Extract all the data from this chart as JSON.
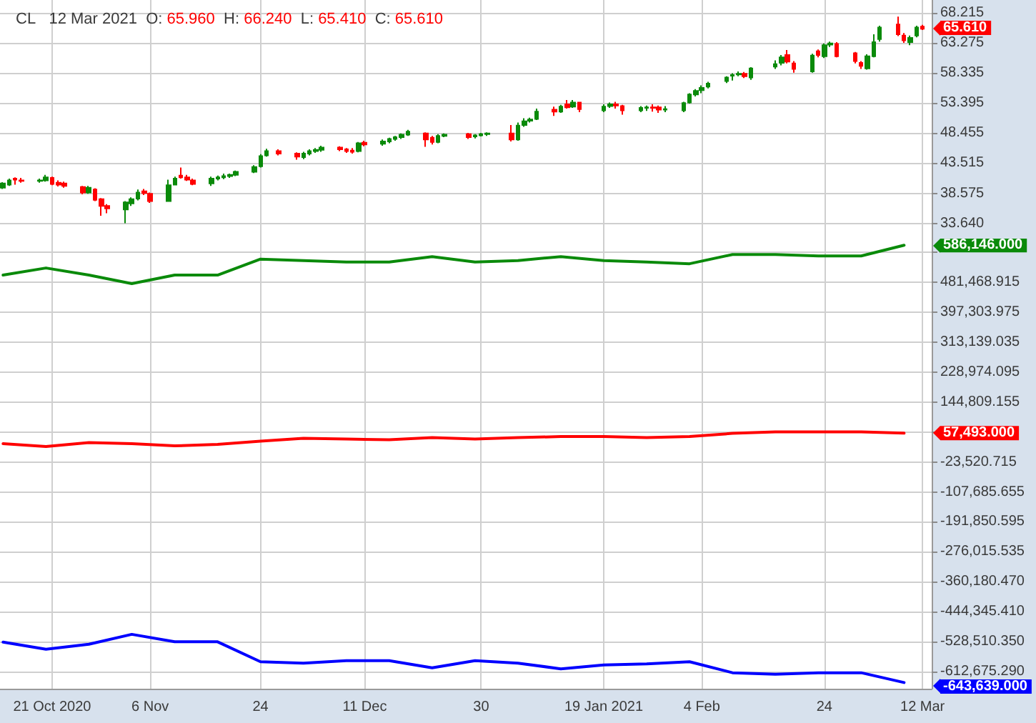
{
  "chart_data": [
    {
      "type": "candlestick",
      "title": "CL   12 Mar 2021  O: 65.960  H: 66.240  L: 65.410  C: 65.610",
      "x": [
        "2020-10-13",
        "2020-10-14",
        "2020-10-15",
        "2020-10-16",
        "2020-10-19",
        "2020-10-20",
        "2020-10-21",
        "2020-10-22",
        "2020-10-23",
        "2020-10-26",
        "2020-10-27",
        "2020-10-28",
        "2020-10-29",
        "2020-10-30",
        "2020-11-02",
        "2020-11-03",
        "2020-11-04",
        "2020-11-05",
        "2020-11-06",
        "2020-11-09",
        "2020-11-10",
        "2020-11-11",
        "2020-11-12",
        "2020-11-13",
        "2020-11-16",
        "2020-11-17",
        "2020-11-18",
        "2020-11-19",
        "2020-11-20",
        "2020-11-23",
        "2020-11-24",
        "2020-11-25",
        "2020-11-27",
        "2020-11-30",
        "2020-12-01",
        "2020-12-02",
        "2020-12-03",
        "2020-12-04",
        "2020-12-07",
        "2020-12-08",
        "2020-12-09",
        "2020-12-10",
        "2020-12-11",
        "2020-12-14",
        "2020-12-15",
        "2020-12-16",
        "2020-12-17",
        "2020-12-18",
        "2020-12-21",
        "2020-12-22",
        "2020-12-23",
        "2020-12-24",
        "2020-12-28",
        "2020-12-29",
        "2020-12-30",
        "2020-12-31",
        "2021-01-04",
        "2021-01-05",
        "2021-01-06",
        "2021-01-07",
        "2021-01-08",
        "2021-01-11",
        "2021-01-12",
        "2021-01-13",
        "2021-01-14",
        "2021-01-15",
        "2021-01-19",
        "2021-01-20",
        "2021-01-21",
        "2021-01-22",
        "2021-01-25",
        "2021-01-26",
        "2021-01-27",
        "2021-01-28",
        "2021-01-29",
        "2021-02-01",
        "2021-02-02",
        "2021-02-03",
        "2021-02-04",
        "2021-02-05",
        "2021-02-08",
        "2021-02-09",
        "2021-02-10",
        "2021-02-11",
        "2021-02-12",
        "2021-02-16",
        "2021-02-17",
        "2021-02-18",
        "2021-02-19",
        "2021-02-22",
        "2021-02-23",
        "2021-02-24",
        "2021-02-25",
        "2021-02-26",
        "2021-03-01",
        "2021-03-02",
        "2021-03-03",
        "2021-03-04",
        "2021-03-05",
        "2021-03-08",
        "2021-03-09",
        "2021-03-10",
        "2021-03-11",
        "2021-03-12"
      ],
      "ohlc": [
        [
          39.5,
          40.4,
          39.3,
          40.2
        ],
        [
          40.0,
          41.0,
          39.8,
          40.7
        ],
        [
          41.0,
          41.2,
          40.0,
          40.8
        ],
        [
          40.7,
          41.1,
          40.3,
          40.6
        ],
        [
          40.6,
          41.0,
          40.3,
          40.7
        ],
        [
          40.7,
          41.6,
          40.5,
          41.2
        ],
        [
          41.1,
          41.3,
          39.9,
          40.1
        ],
        [
          40.3,
          40.7,
          39.7,
          40.0
        ],
        [
          40.2,
          40.5,
          39.5,
          39.8
        ],
        [
          39.6,
          39.8,
          38.4,
          38.7
        ],
        [
          38.7,
          39.8,
          38.5,
          39.5
        ],
        [
          39.2,
          39.4,
          37.3,
          37.5
        ],
        [
          37.6,
          37.8,
          34.9,
          36.5
        ],
        [
          36.5,
          36.8,
          35.3,
          36.1
        ],
        [
          35.9,
          37.3,
          33.64,
          37.1
        ],
        [
          36.9,
          37.9,
          36.5,
          37.6
        ],
        [
          37.7,
          39.2,
          37.4,
          38.7
        ],
        [
          38.9,
          39.3,
          38.3,
          38.6
        ],
        [
          38.5,
          38.7,
          37.0,
          37.3
        ],
        [
          37.3,
          40.8,
          37.2,
          39.9
        ],
        [
          40.0,
          41.3,
          39.9,
          41.0
        ],
        [
          41.5,
          42.8,
          41.0,
          41.2
        ],
        [
          41.2,
          41.6,
          40.6,
          40.8
        ],
        [
          40.7,
          41.0,
          39.9,
          40.1
        ],
        [
          40.2,
          41.3,
          39.8,
          41.0
        ],
        [
          41.0,
          41.5,
          40.7,
          41.2
        ],
        [
          41.2,
          41.8,
          40.9,
          41.4
        ],
        [
          41.4,
          41.8,
          41.1,
          41.6
        ],
        [
          41.6,
          42.3,
          41.4,
          42.1
        ],
        [
          42.1,
          43.2,
          41.9,
          42.9
        ],
        [
          43.0,
          45.0,
          42.8,
          44.7
        ],
        [
          44.8,
          45.9,
          44.6,
          45.5
        ],
        [
          45.5,
          45.8,
          44.8,
          45.1
        ],
        [
          45.1,
          45.3,
          44.1,
          44.6
        ],
        [
          44.5,
          45.4,
          44.2,
          45.1
        ],
        [
          45.1,
          45.8,
          44.8,
          45.5
        ],
        [
          45.5,
          46.0,
          45.2,
          45.7
        ],
        [
          45.7,
          46.4,
          45.4,
          46.1
        ],
        [
          46.1,
          46.3,
          45.5,
          45.8
        ],
        [
          45.8,
          46.0,
          45.2,
          45.5
        ],
        [
          45.6,
          46.0,
          45.1,
          45.4
        ],
        [
          45.5,
          47.0,
          45.3,
          46.8
        ],
        [
          46.9,
          47.2,
          46.3,
          46.6
        ],
        [
          46.7,
          47.4,
          46.4,
          47.1
        ],
        [
          47.1,
          47.7,
          46.8,
          47.5
        ],
        [
          47.5,
          48.0,
          47.2,
          47.8
        ],
        [
          47.8,
          48.4,
          47.5,
          48.2
        ],
        [
          48.2,
          49.0,
          48.0,
          48.7
        ],
        [
          48.4,
          48.6,
          46.2,
          47.4
        ],
        [
          47.7,
          48.0,
          46.6,
          47.0
        ],
        [
          47.0,
          48.3,
          46.8,
          48.0
        ],
        [
          48.0,
          48.4,
          47.8,
          48.2
        ],
        [
          48.3,
          48.5,
          47.5,
          47.8
        ],
        [
          47.9,
          48.3,
          47.6,
          48.1
        ],
        [
          48.1,
          48.5,
          47.9,
          48.3
        ],
        [
          48.3,
          48.6,
          48.0,
          48.4
        ],
        [
          48.4,
          49.8,
          47.1,
          47.4
        ],
        [
          47.4,
          50.2,
          47.2,
          49.7
        ],
        [
          49.8,
          50.9,
          49.5,
          50.4
        ],
        [
          50.5,
          51.0,
          50.2,
          50.7
        ],
        [
          50.8,
          52.5,
          50.6,
          52.0
        ],
        [
          52.3,
          52.8,
          51.3,
          52.0
        ],
        [
          52.0,
          53.1,
          51.8,
          52.8
        ],
        [
          53.2,
          53.9,
          52.5,
          52.7
        ],
        [
          52.8,
          53.9,
          52.6,
          53.5
        ],
        [
          53.5,
          53.6,
          51.9,
          52.4
        ],
        [
          52.2,
          53.2,
          51.9,
          52.8
        ],
        [
          52.9,
          53.5,
          52.6,
          53.2
        ],
        [
          53.2,
          53.6,
          52.5,
          53.0
        ],
        [
          52.9,
          53.1,
          51.5,
          52.2
        ],
        [
          52.2,
          52.9,
          51.9,
          52.6
        ],
        [
          52.6,
          53.0,
          52.1,
          52.7
        ],
        [
          52.7,
          53.2,
          52.0,
          52.6
        ],
        [
          52.7,
          53.0,
          51.8,
          52.3
        ],
        [
          52.3,
          52.9,
          51.9,
          52.4
        ],
        [
          52.2,
          53.6,
          51.9,
          53.4
        ],
        [
          53.5,
          55.0,
          53.3,
          54.8
        ],
        [
          54.8,
          55.7,
          54.5,
          55.4
        ],
        [
          55.5,
          56.3,
          55.0,
          55.9
        ],
        [
          56.1,
          56.9,
          55.8,
          56.6
        ],
        [
          57.0,
          57.8,
          56.7,
          57.6
        ],
        [
          57.9,
          58.3,
          57.1,
          58.0
        ],
        [
          58.1,
          58.6,
          57.8,
          58.2
        ],
        [
          58.2,
          58.5,
          57.5,
          57.8
        ],
        [
          57.6,
          59.3,
          57.2,
          59.1
        ],
        [
          59.4,
          60.4,
          59.0,
          59.8
        ],
        [
          60.0,
          61.3,
          59.6,
          60.9
        ],
        [
          61.3,
          62.1,
          59.9,
          60.2
        ],
        [
          59.9,
          60.3,
          58.4,
          59.0
        ],
        [
          58.6,
          61.5,
          58.4,
          61.2
        ],
        [
          61.9,
          62.2,
          60.9,
          61.3
        ],
        [
          61.1,
          63.2,
          60.8,
          62.9
        ],
        [
          63.0,
          63.5,
          62.6,
          63.2
        ],
        [
          63.1,
          63.4,
          60.9,
          61.1
        ],
        [
          61.6,
          61.8,
          59.9,
          60.3
        ],
        [
          60.0,
          60.3,
          59.0,
          59.5
        ],
        [
          59.1,
          61.4,
          58.9,
          61.1
        ],
        [
          61.1,
          64.7,
          60.9,
          63.4
        ],
        [
          63.9,
          66.1,
          63.5,
          65.8
        ],
        [
          66.3,
          67.6,
          64.4,
          64.7
        ],
        [
          64.5,
          64.9,
          63.3,
          63.7
        ],
        [
          63.4,
          64.5,
          62.9,
          64.1
        ],
        [
          64.5,
          66.1,
          64.2,
          65.8
        ],
        [
          65.96,
          66.24,
          65.41,
          65.61
        ]
      ],
      "xlim": [
        "2020-10-12T12:00",
        "2021-03-13T12:00"
      ],
      "xticks": [
        {
          "value": "2020-10-21",
          "label": null
        },
        {
          "value": "2020-11-06",
          "label": null
        },
        {
          "value": "2020-11-24",
          "label": null
        },
        {
          "value": "2020-12-11",
          "label": null
        },
        {
          "value": "2020-12-30",
          "label": null
        },
        {
          "value": "2021-01-19",
          "label": null
        },
        {
          "value": "2021-02-04",
          "label": null
        },
        {
          "value": "2021-02-24",
          "label": null
        },
        {
          "value": "2021-03-12",
          "label": null
        }
      ],
      "ylim": [
        31.13,
        70.33
      ],
      "yticks": [
        {
          "value": 33.64,
          "label": "33.640"
        },
        {
          "value": 38.575,
          "label": "38.575"
        },
        {
          "value": 43.515,
          "label": "43.515"
        },
        {
          "value": 48.455,
          "label": "48.455"
        },
        {
          "value": 53.395,
          "label": "53.395"
        },
        {
          "value": 58.335,
          "label": "58.335"
        },
        {
          "value": 63.275,
          "label": "63.275"
        },
        {
          "value": 68.215,
          "label": "68.215"
        }
      ],
      "grid": true,
      "tick_labels": "y",
      "annotations": [
        {
          "text": "65.610",
          "x": "2021-03-12",
          "y": 65.61
        }
      ]
    },
    {
      "type": "line",
      "x": [
        "2020-10-13",
        "2020-10-20",
        "2020-10-27",
        "2020-11-03",
        "2020-11-10",
        "2020-11-17",
        "2020-11-24",
        "2020-12-01",
        "2020-12-08",
        "2020-12-15",
        "2020-12-22",
        "2020-12-29",
        "2021-01-05",
        "2021-01-12",
        "2021-01-19",
        "2021-01-26",
        "2021-02-02",
        "2021-02-09",
        "2021-02-16",
        "2021-02-23",
        "2021-03-02",
        "2021-03-09"
      ],
      "series": [
        {
          "color": "#0a8a0a",
          "values": [
            502000,
            522000,
            502000,
            478000,
            502000,
            502000,
            547000,
            543000,
            539000,
            539000,
            554000,
            539000,
            543000,
            554000,
            543000,
            539000,
            534000,
            560000,
            560000,
            556000,
            556000,
            586146
          ]
        },
        {
          "color": "#ff0000",
          "values": [
            28000,
            20000,
            31000,
            28000,
            22000,
            26000,
            35000,
            43000,
            41000,
            39000,
            45000,
            41000,
            45000,
            48000,
            48000,
            45000,
            48000,
            57000,
            61000,
            61000,
            61000,
            57493
          ]
        },
        {
          "color": "#0000ff",
          "values": [
            -530000,
            -550000,
            -536000,
            -508000,
            -529000,
            -529000,
            -585000,
            -589000,
            -582000,
            -582000,
            -602000,
            -582000,
            -589000,
            -605000,
            -594000,
            -591000,
            -585000,
            -616000,
            -620000,
            -616000,
            -616000,
            -643639
          ]
        }
      ],
      "annotations": [
        {
          "text": "586,146.000",
          "x": "2021-03-09",
          "y": 586146
        },
        {
          "text": "57,493.000",
          "x": "2021-03-09",
          "y": 57493
        },
        {
          "text": "-643,639.000",
          "x": "2021-03-09",
          "y": -643639
        }
      ],
      "xlim": [
        "2020-10-12T12:00",
        "2021-03-13T12:00"
      ],
      "xticks": [
        {
          "value": "2020-10-21",
          "label": "21 Oct 2020"
        },
        {
          "value": "2020-11-06",
          "label": "6 Nov"
        },
        {
          "value": "2020-11-24",
          "label": "24"
        },
        {
          "value": "2020-12-11",
          "label": "11 Dec"
        },
        {
          "value": "2020-12-30",
          "label": "30"
        },
        {
          "value": "2021-01-19",
          "label": "19 Jan 2021"
        },
        {
          "value": "2021-02-04",
          "label": "4 Feb"
        },
        {
          "value": "2021-02-24",
          "label": "24"
        },
        {
          "value": "2021-03-12",
          "label": "12 Mar"
        }
      ],
      "ylim": [
        -660900,
        604600
      ],
      "yticks": [
        {
          "value": 565633.855,
          "label": null
        },
        {
          "value": 481468.915,
          "label": "481,468.915"
        },
        {
          "value": 397303.975,
          "label": "397,303.975"
        },
        {
          "value": 313139.035,
          "label": "313,139.035"
        },
        {
          "value": 228974.095,
          "label": "228,974.095"
        },
        {
          "value": 144809.155,
          "label": "144,809.155"
        },
        {
          "value": 60644.215,
          "label": null
        },
        {
          "value": -23520.715,
          "label": "-23,520.715"
        },
        {
          "value": -107685.655,
          "label": "-107,685.655"
        },
        {
          "value": -191850.595,
          "label": "-191,850.595"
        },
        {
          "value": -276015.535,
          "label": "-276,015.535"
        },
        {
          "value": -360180.47,
          "label": "-360,180.470"
        },
        {
          "value": -444345.41,
          "label": "-444,345.410"
        },
        {
          "value": -528510.35,
          "label": "-528,510.350"
        },
        {
          "value": -612675.29,
          "label": "-612,675.290"
        }
      ],
      "grid": true,
      "marker": "none",
      "line_style": "solid"
    }
  ]
}
